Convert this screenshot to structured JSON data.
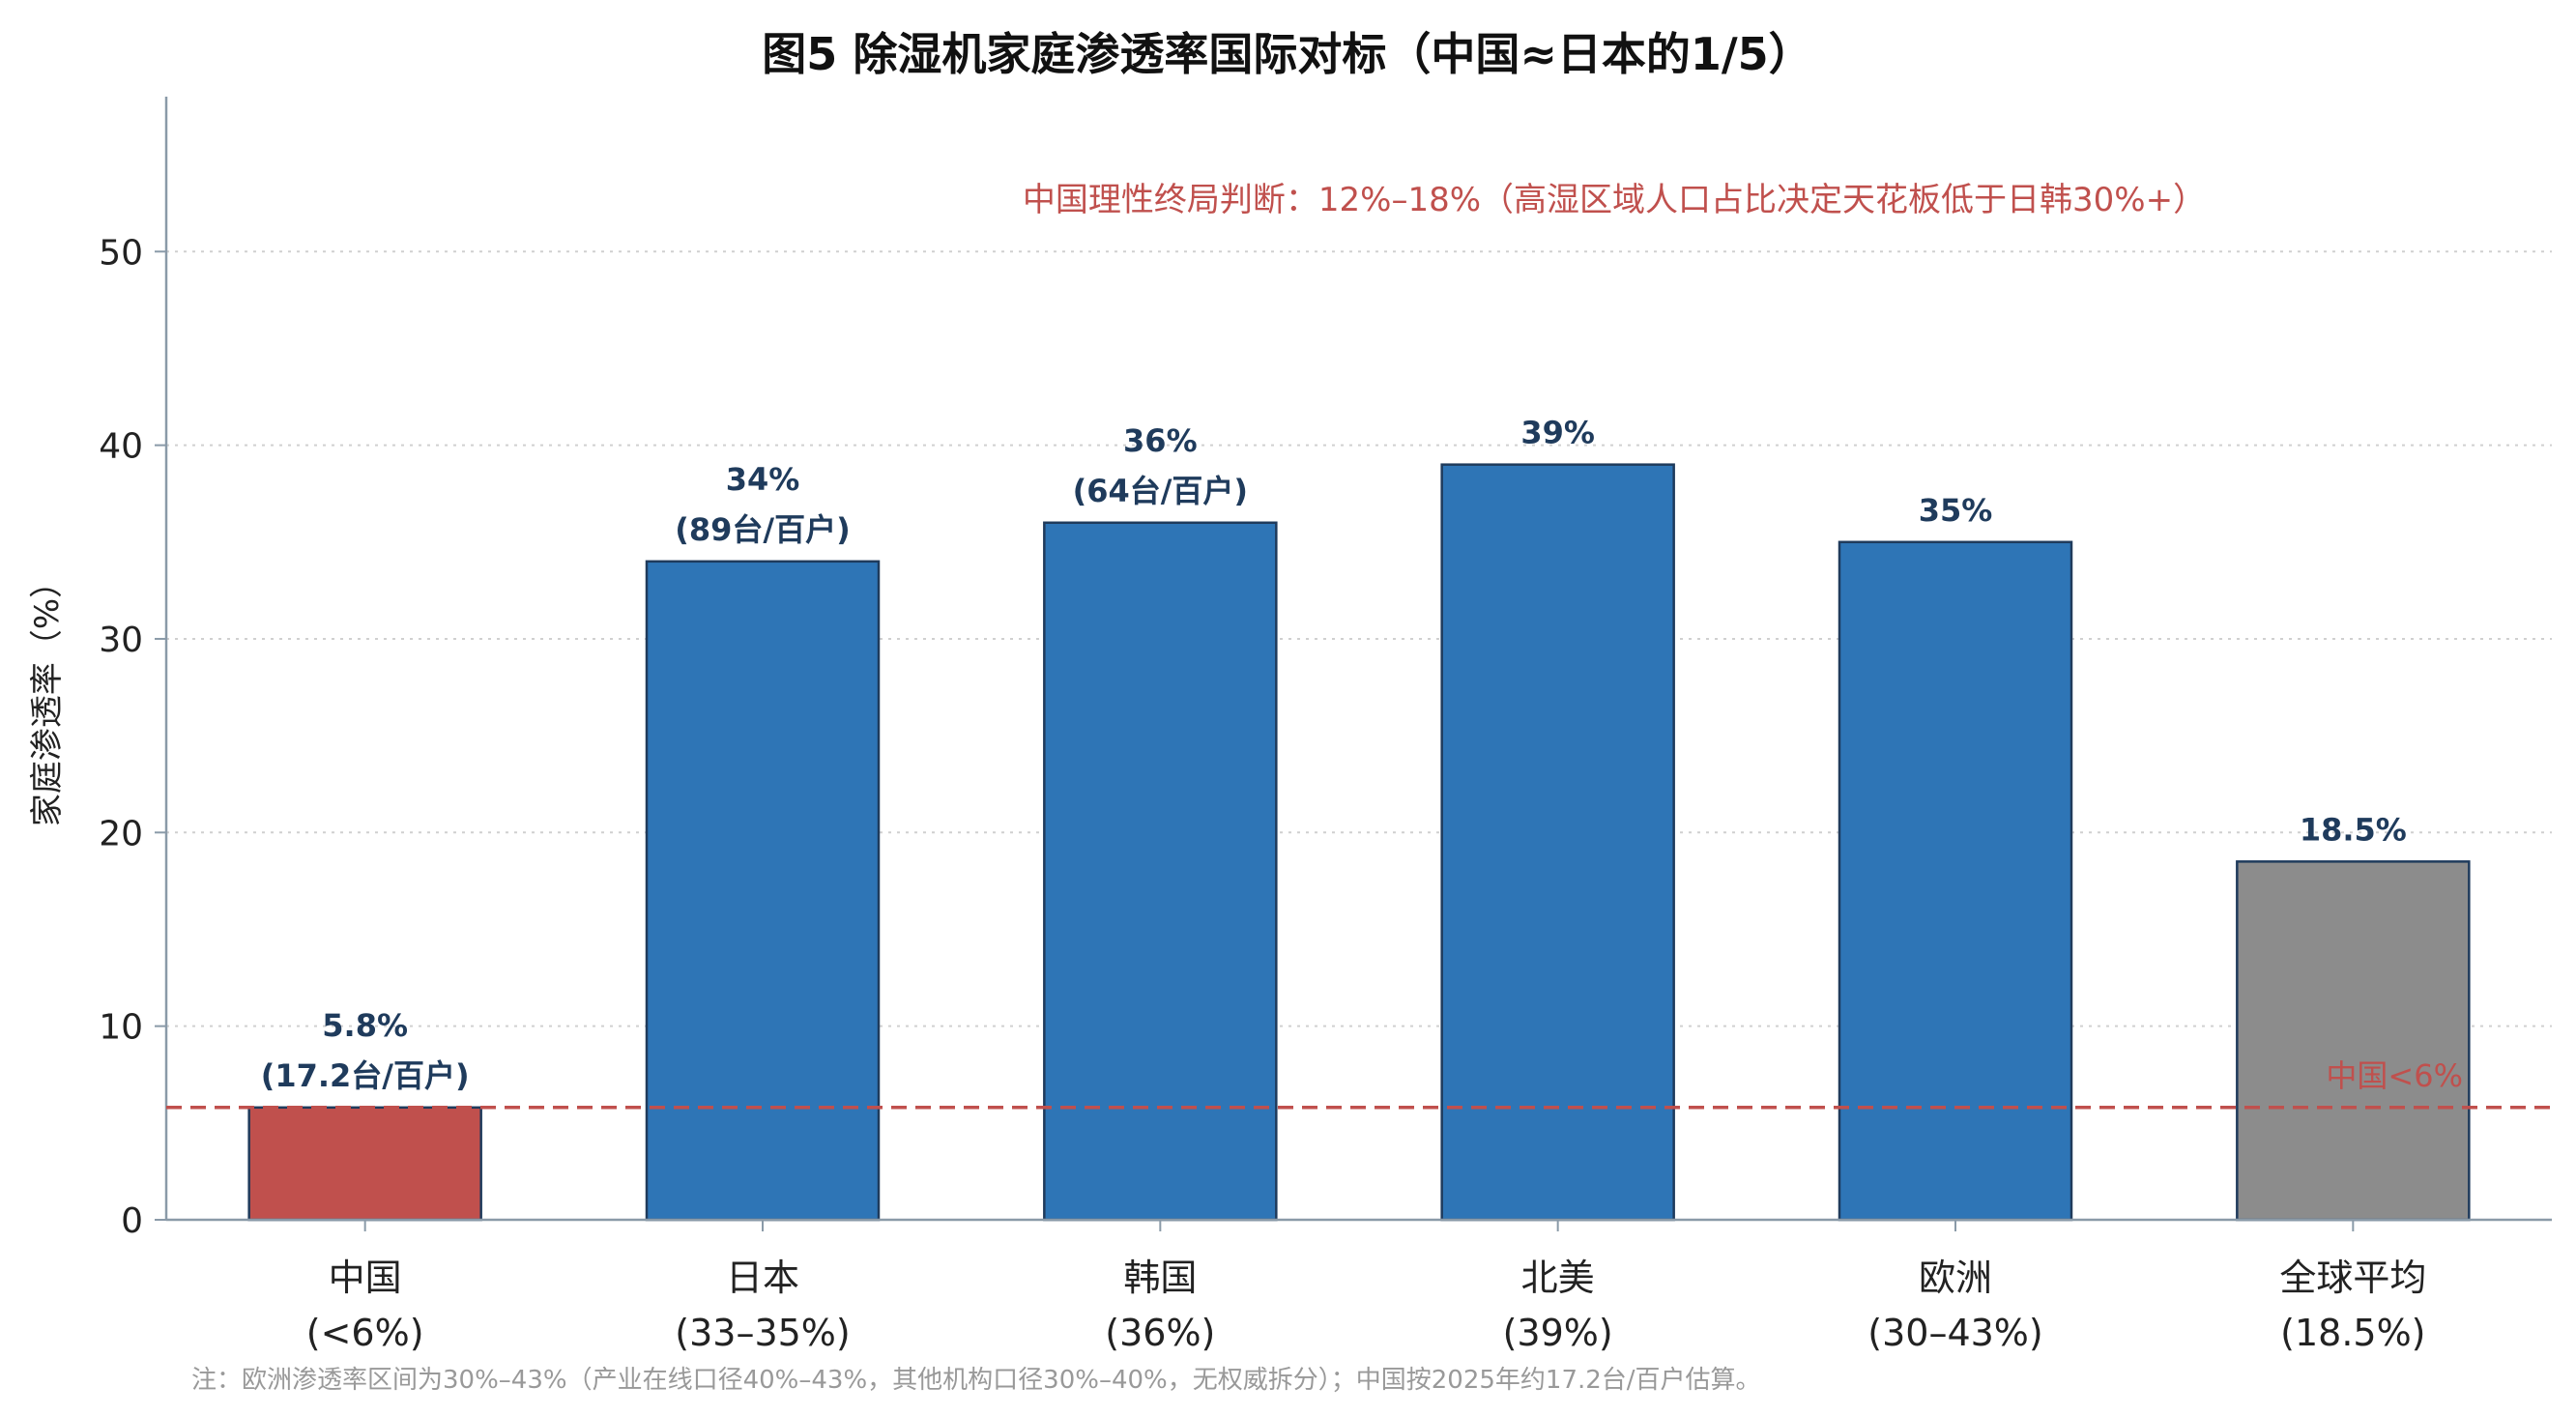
{
  "chart_data": {
    "type": "bar",
    "title": "图5  除湿机家庭渗透率国际对标（中国≈日本的1/5）",
    "ylabel": "家庭渗透率（%）",
    "xlabel": "",
    "ylim": [
      0,
      58
    ],
    "yticks": [
      0,
      10,
      20,
      30,
      40,
      50
    ],
    "grid": "horizontal-dotted",
    "categories": [
      {
        "name": "中国",
        "sub": "(<6%)",
        "value": 5.8,
        "label": [
          "5.8%",
          "(17.2台/百户)"
        ],
        "color": "#c0504d"
      },
      {
        "name": "日本",
        "sub": "(33–35%)",
        "value": 34,
        "label": [
          "34%",
          "(89台/百户)"
        ],
        "color": "#2e75b6"
      },
      {
        "name": "韩国",
        "sub": "(36%)",
        "value": 36,
        "label": [
          "36%",
          "(64台/百户)"
        ],
        "color": "#2e75b6"
      },
      {
        "name": "北美",
        "sub": "(39%)",
        "value": 39,
        "label": [
          "39%"
        ],
        "color": "#2e75b6"
      },
      {
        "name": "欧洲",
        "sub": "(30–43%)",
        "value": 35,
        "label": [
          "35%"
        ],
        "color": "#2e75b6"
      },
      {
        "name": "全球平均",
        "sub": "(18.5%)",
        "value": 18.5,
        "label": [
          "18.5%"
        ],
        "color": "#8c8c8c"
      }
    ],
    "reference_line": {
      "value": 5.8,
      "label": "中国<6%",
      "color": "#c0504d"
    },
    "annotation": {
      "text": "中国理性终局判断：12%–18%（高湿区域人口占比决定天花板低于日韩30%+）",
      "color": "#c0504d"
    },
    "footnote": "注：欧洲渗透率区间为30%–43%（产业在线口径40%–43%，其他机构口径30%–40%，无权威拆分）；中国按2025年约17.2台/百户估算。",
    "colors": {
      "bar_edge": "#1f3b5c",
      "axis": "#8a9aa8",
      "grid": "#d0d0d0",
      "data_label": "#1f3b5c"
    }
  }
}
